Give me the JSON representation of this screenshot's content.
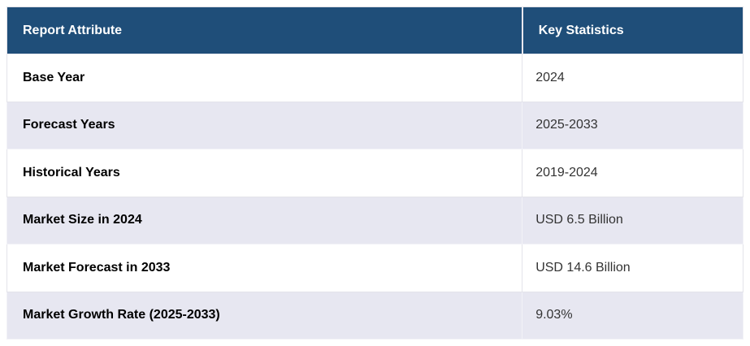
{
  "table": {
    "header": {
      "attribute_label": "Report Attribute",
      "statistics_label": "Key Statistics"
    },
    "rows": [
      {
        "attribute": "Base Year",
        "value": "2024"
      },
      {
        "attribute": "Forecast Years",
        "value": "2025-2033"
      },
      {
        "attribute": "Historical Years",
        "value": "2019-2024"
      },
      {
        "attribute": "Market Size in 2024",
        "value": "USD 6.5 Billion"
      },
      {
        "attribute": "Market Forecast in 2033",
        "value": "USD 14.6 Billion"
      },
      {
        "attribute": "Market Growth Rate (2025-2033)",
        "value": "9.03%"
      }
    ],
    "colors": {
      "header_bg": "#1f4e79",
      "header_text": "#ffffff",
      "stripe_bg": "#e7e7f1",
      "border": "#e3e3ea",
      "attribute_text": "#000000",
      "value_text": "#333333"
    }
  }
}
